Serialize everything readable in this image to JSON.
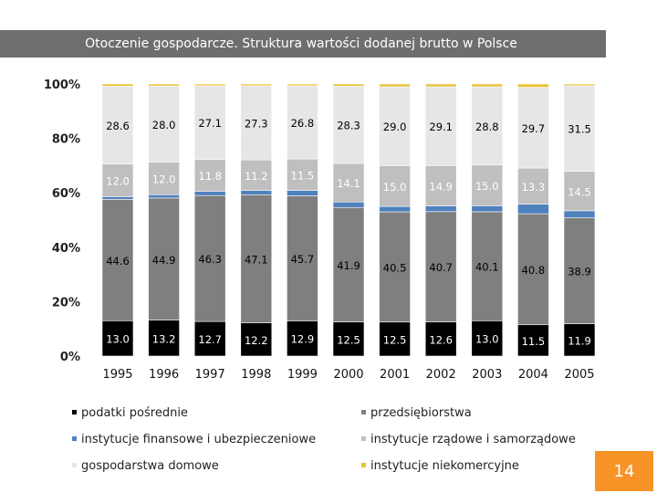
{
  "chart_data": {
    "type": "bar",
    "stacked": true,
    "percent": true,
    "title": "Otoczenie gospodarcze. Struktura wartości dodanej brutto w Polsce",
    "categories": [
      "1995",
      "1996",
      "1997",
      "1998",
      "1999",
      "2000",
      "2001",
      "2002",
      "2003",
      "2004",
      "2005"
    ],
    "y_ticks": [
      "0%",
      "20%",
      "40%",
      "60%",
      "80%",
      "100%"
    ],
    "ylim": [
      0,
      100
    ],
    "series": [
      {
        "name": "podatki pośrednie",
        "color": "#000000",
        "label_color": "#ffffff",
        "values": [
          13.0,
          13.2,
          12.7,
          12.2,
          12.9,
          12.5,
          12.5,
          12.6,
          13.0,
          11.5,
          11.9
        ]
      },
      {
        "name": "przedsiębiorstwa",
        "color": "#7f7f7f",
        "label_color": "#000000",
        "values": [
          44.6,
          44.9,
          46.3,
          47.1,
          45.7,
          41.9,
          40.5,
          40.7,
          40.1,
          40.8,
          38.9
        ]
      },
      {
        "name": "instytucje finansowe i ubezpieczeniowe",
        "color": "#4f81bd",
        "label_color": null,
        "values": [
          1.0,
          1.2,
          1.5,
          1.6,
          2.0,
          2.0,
          2.0,
          2.1,
          2.2,
          3.5,
          2.6
        ]
      },
      {
        "name": "instytucje rządowe i samorządowe",
        "color": "#bfbfbf",
        "label_color": "#ffffff",
        "values": [
          12.0,
          12.0,
          11.8,
          11.2,
          11.5,
          14.1,
          15.0,
          14.9,
          15.0,
          13.3,
          14.5
        ]
      },
      {
        "name": "gospodarstwa domowe",
        "color": "#e6e6e6",
        "label_color": "#000000",
        "values": [
          28.6,
          28.0,
          27.1,
          27.3,
          26.8,
          28.3,
          29.0,
          29.1,
          28.8,
          29.7,
          31.5
        ]
      },
      {
        "name": "instytucje niekomercyjne",
        "color": "#e8c232",
        "label_color": null,
        "values": [
          0.8,
          0.7,
          0.6,
          0.6,
          0.6,
          0.8,
          1.0,
          1.0,
          1.0,
          1.2,
          0.6
        ]
      }
    ],
    "legend_position": "bottom",
    "grid": false
  },
  "page_number": "14"
}
